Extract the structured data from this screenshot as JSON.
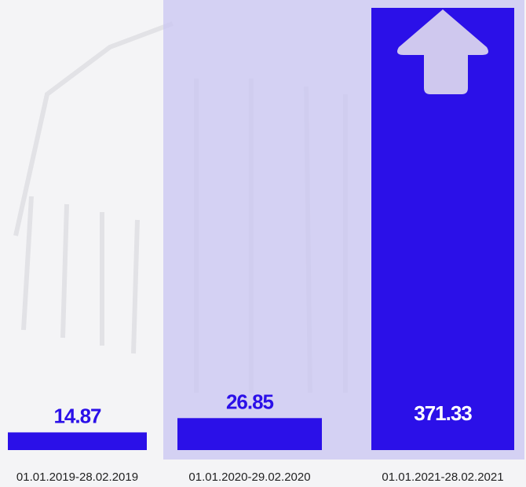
{
  "chart_data": {
    "type": "bar",
    "categories": [
      "01.01.2019-28.02.2019",
      "01.01.2020-29.02.2020",
      "01.01.2021-28.02.2021"
    ],
    "values": [
      14.87,
      26.85,
      371.33
    ],
    "color": "#2b10e8"
  }
}
